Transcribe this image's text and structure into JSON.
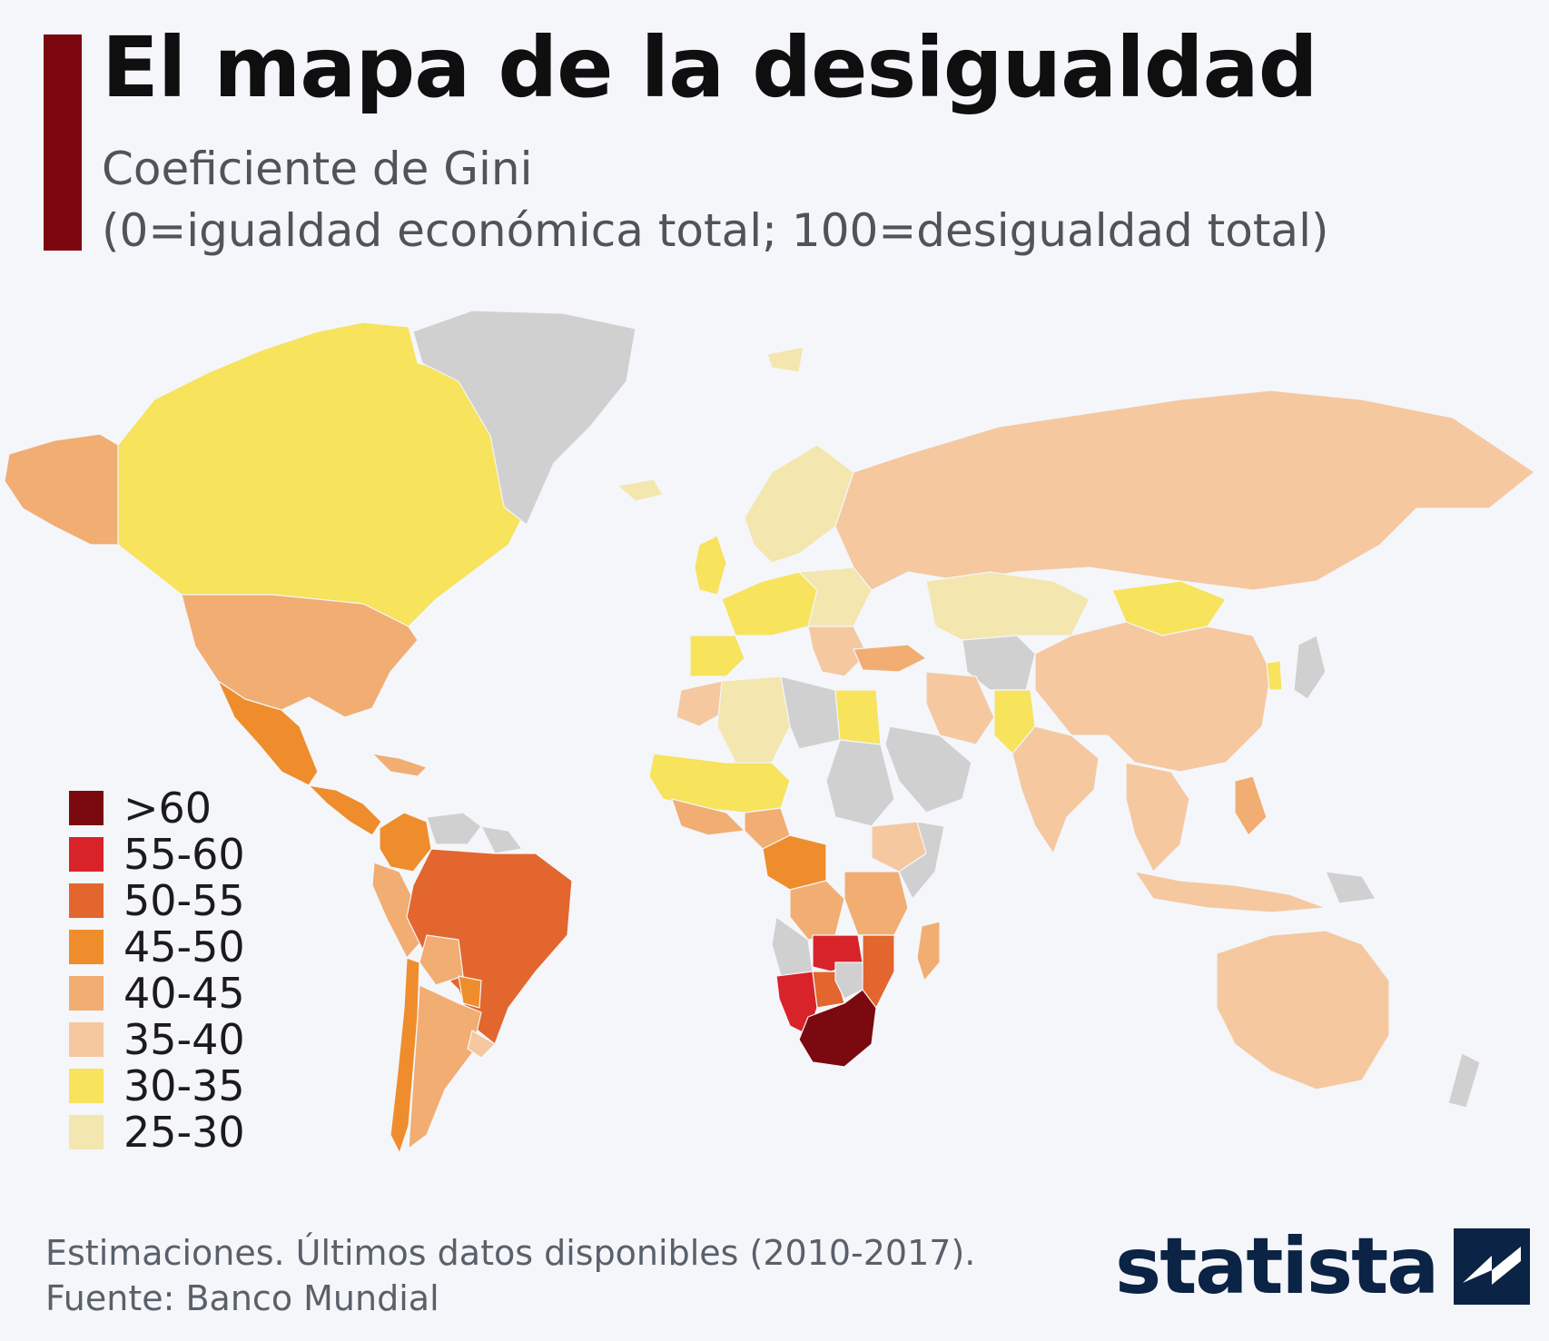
{
  "header": {
    "title": "El mapa de la desigualdad",
    "subtitle_line1": "Coeficiente de Gini",
    "subtitle_line2": "(0=igualdad económica total; 100=desigualdad total)"
  },
  "legend": [
    {
      "label": ">60",
      "color": "#7a0a0f"
    },
    {
      "label": "55-60",
      "color": "#d8232a"
    },
    {
      "label": "50-55",
      "color": "#e2662d"
    },
    {
      "label": "45-50",
      "color": "#ef8d2c"
    },
    {
      "label": "40-45",
      "color": "#f1ad72"
    },
    {
      "label": "35-40",
      "color": "#f5c8a0"
    },
    {
      "label": "30-35",
      "color": "#f7e35c"
    },
    {
      "label": "25-30",
      "color": "#f3e6ae"
    }
  ],
  "map": {
    "no_data_color": "#d0d0d0",
    "regions": [
      {
        "name": "Alaska",
        "class": "40-45"
      },
      {
        "name": "Canada",
        "class": "30-35"
      },
      {
        "name": "Greenland",
        "class": "no-data"
      },
      {
        "name": "United States",
        "class": "40-45"
      },
      {
        "name": "Mexico",
        "class": "45-50"
      },
      {
        "name": "Central America",
        "class": "45-50"
      },
      {
        "name": "Caribbean",
        "class": "40-45"
      },
      {
        "name": "Colombia",
        "class": "45-50"
      },
      {
        "name": "Venezuela",
        "class": "no-data"
      },
      {
        "name": "Guianas",
        "class": "no-data"
      },
      {
        "name": "Brazil",
        "class": "50-55"
      },
      {
        "name": "Peru",
        "class": "40-45"
      },
      {
        "name": "Bolivia",
        "class": "40-45"
      },
      {
        "name": "Chile",
        "class": "45-50"
      },
      {
        "name": "Argentina",
        "class": "40-45"
      },
      {
        "name": "Paraguay",
        "class": "45-50"
      },
      {
        "name": "Uruguay",
        "class": "35-40"
      },
      {
        "name": "Iceland",
        "class": "25-30"
      },
      {
        "name": "Svalbard",
        "class": "25-30"
      },
      {
        "name": "Scandinavia",
        "class": "25-30"
      },
      {
        "name": "United Kingdom",
        "class": "30-35"
      },
      {
        "name": "Western Europe",
        "class": "30-35"
      },
      {
        "name": "Central Europe",
        "class": "25-30"
      },
      {
        "name": "Spain and Portugal",
        "class": "30-35"
      },
      {
        "name": "Balkans",
        "class": "35-40"
      },
      {
        "name": "Russia",
        "class": "35-40"
      },
      {
        "name": "Kazakhstan",
        "class": "25-30"
      },
      {
        "name": "Central Asia",
        "class": "no-data"
      },
      {
        "name": "Turkey",
        "class": "40-45"
      },
      {
        "name": "Iran",
        "class": "35-40"
      },
      {
        "name": "Arabian Peninsula",
        "class": "no-data"
      },
      {
        "name": "Pakistan",
        "class": "30-35"
      },
      {
        "name": "India",
        "class": "35-40"
      },
      {
        "name": "Mongolia",
        "class": "30-35"
      },
      {
        "name": "China",
        "class": "35-40"
      },
      {
        "name": "Korea",
        "class": "30-35"
      },
      {
        "name": "Japan",
        "class": "no-data"
      },
      {
        "name": "Southeast Asia",
        "class": "35-40"
      },
      {
        "name": "Philippines",
        "class": "40-45"
      },
      {
        "name": "Indonesia",
        "class": "35-40"
      },
      {
        "name": "Papua New Guinea",
        "class": "no-data"
      },
      {
        "name": "Australia",
        "class": "35-40"
      },
      {
        "name": "New Zealand",
        "class": "no-data"
      },
      {
        "name": "Morocco",
        "class": "35-40"
      },
      {
        "name": "Algeria",
        "class": "25-30"
      },
      {
        "name": "Libya",
        "class": "no-data"
      },
      {
        "name": "Egypt",
        "class": "30-35"
      },
      {
        "name": "West Africa",
        "class": "30-35"
      },
      {
        "name": "Gulf of Guinea",
        "class": "40-45"
      },
      {
        "name": "Nigeria",
        "class": "40-45"
      },
      {
        "name": "Sudan",
        "class": "no-data"
      },
      {
        "name": "Ethiopia",
        "class": "35-40"
      },
      {
        "name": "Somalia",
        "class": "no-data"
      },
      {
        "name": "Central Africa",
        "class": "45-50"
      },
      {
        "name": "DR Congo",
        "class": "40-45"
      },
      {
        "name": "East Africa",
        "class": "40-45"
      },
      {
        "name": "Angola",
        "class": "no-data"
      },
      {
        "name": "Zambia",
        "class": "55-60"
      },
      {
        "name": "Mozambique",
        "class": "50-55"
      },
      {
        "name": "Namibia",
        "class": "55-60"
      },
      {
        "name": "Botswana",
        "class": "50-55"
      },
      {
        "name": "Zimbabwe",
        "class": "no-data"
      },
      {
        "name": "South Africa",
        "class": ">60"
      },
      {
        "name": "Madagascar",
        "class": "40-45"
      }
    ]
  },
  "footer": {
    "note": "Estimaciones. Últimos datos disponibles (2010-2017).",
    "source": "Fuente: Banco Mundial"
  },
  "logo": {
    "text": "statista"
  }
}
